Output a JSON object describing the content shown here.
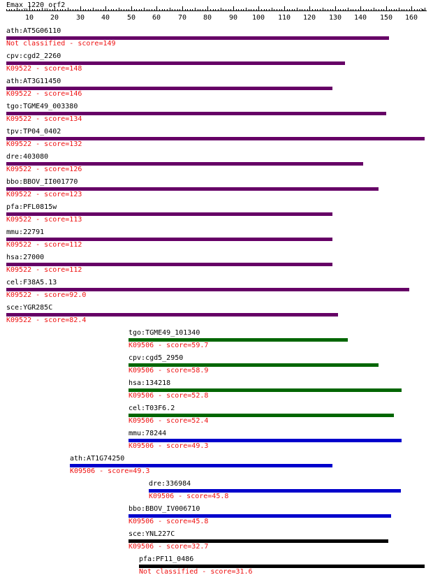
{
  "query": {
    "title": "Emax_1220_orf2"
  },
  "axis": {
    "min": 1,
    "max": 165,
    "labels": [
      "10",
      "20",
      "30",
      "40",
      "50",
      "60",
      "70",
      "80",
      "90",
      "100",
      "110",
      "120",
      "130",
      "140",
      "150",
      "160"
    ]
  },
  "colors": {
    "K09522": "#660066",
    "green": "#006600",
    "blue": "#0000cc",
    "black": "#000000",
    "score_text": "#ee1111"
  },
  "hits": [
    {
      "gene": "ath:AT5G06110",
      "annotation": "Not classified - score=149",
      "start": 1,
      "end": 151,
      "color": "#660066"
    },
    {
      "gene": "cpv:cgd2_2260",
      "annotation": "K09522 - score=148",
      "start": 1,
      "end": 134,
      "color": "#660066"
    },
    {
      "gene": "ath:AT3G11450",
      "annotation": "K09522 - score=146",
      "start": 1,
      "end": 129,
      "color": "#660066"
    },
    {
      "gene": "tgo:TGME49_003380",
      "annotation": "K09522 - score=134",
      "start": 1,
      "end": 150,
      "color": "#660066"
    },
    {
      "gene": "tpv:TP04_0402",
      "annotation": "K09522 - score=132",
      "start": 1,
      "end": 165,
      "color": "#660066"
    },
    {
      "gene": "dre:403080",
      "annotation": "K09522 - score=126",
      "start": 1,
      "end": 141,
      "color": "#660066"
    },
    {
      "gene": "bbo:BBOV_II001770",
      "annotation": "K09522 - score=123",
      "start": 1,
      "end": 147,
      "color": "#660066"
    },
    {
      "gene": "pfa:PFL0815w",
      "annotation": "K09522 - score=113",
      "start": 1,
      "end": 129,
      "color": "#660066"
    },
    {
      "gene": "mmu:22791",
      "annotation": "K09522 - score=112",
      "start": 1,
      "end": 129,
      "color": "#660066"
    },
    {
      "gene": "hsa:27000",
      "annotation": "K09522 - score=112",
      "start": 1,
      "end": 129,
      "color": "#660066"
    },
    {
      "gene": "cel:F38A5.13",
      "annotation": "K09522 - score=92.0",
      "start": 1,
      "end": 159,
      "color": "#660066"
    },
    {
      "gene": "sce:YGR285C",
      "annotation": "K09522 - score=82.4",
      "start": 1,
      "end": 131,
      "color": "#660066"
    },
    {
      "gene": "tgo:TGME49_101340",
      "annotation": "K09506 - score=59.7",
      "start": 49,
      "end": 135,
      "color": "#006600"
    },
    {
      "gene": "cpv:cgd5_2950",
      "annotation": "K09506 - score=58.9",
      "start": 49,
      "end": 147,
      "color": "#006600"
    },
    {
      "gene": "hsa:134218",
      "annotation": "K09506 - score=52.8",
      "start": 49,
      "end": 156,
      "color": "#006600"
    },
    {
      "gene": "cel:T03F6.2",
      "annotation": "K09506 - score=52.4",
      "start": 49,
      "end": 153,
      "color": "#006600"
    },
    {
      "gene": "mmu:78244",
      "annotation": "K09506 - score=49.3",
      "start": 49,
      "end": 156,
      "color": "#0000cc"
    },
    {
      "gene": "ath:AT1G74250",
      "annotation": "K09506 - score=49.3",
      "start": 26,
      "end": 129,
      "color": "#0000cc"
    },
    {
      "gene": "dre:336984",
      "annotation": "K09506 - score=45.8",
      "start": 57,
      "end": 156,
      "color": "#0000cc"
    },
    {
      "gene": "bbo:BBOV_IV006710",
      "annotation": "K09506 - score=45.8",
      "start": 49,
      "end": 152,
      "color": "#0000cc"
    },
    {
      "gene": "sce:YNL227C",
      "annotation": "K09506 - score=32.7",
      "start": 49,
      "end": 151,
      "color": "#000000"
    },
    {
      "gene": "pfa:PF11_0486",
      "annotation": "Not classified - score=31.6",
      "start": 53,
      "end": 165,
      "color": "#000000"
    }
  ]
}
